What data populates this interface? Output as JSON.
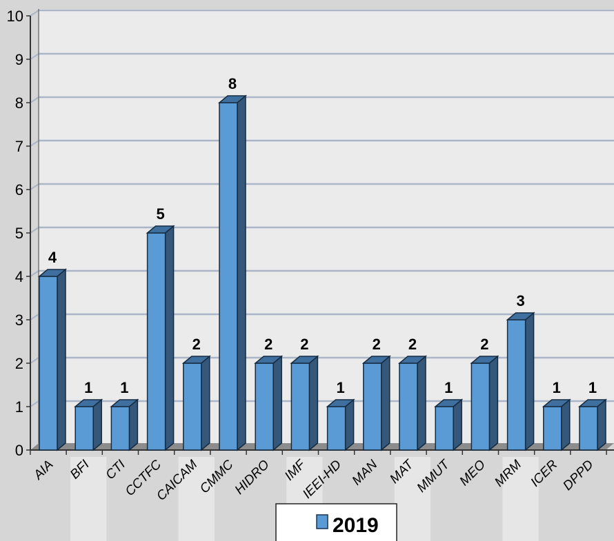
{
  "chart_data": {
    "type": "bar",
    "categories": [
      "AIA",
      "BFI",
      "CTI",
      "CCTFC",
      "CAICAM",
      "CMMC",
      "HIDRO",
      "IMF",
      "IEEI-HD",
      "MAN",
      "MAT",
      "MMUT",
      "MEO",
      "MRM",
      "ICER",
      "DPPD"
    ],
    "series": [
      {
        "name": "2019",
        "values": [
          4,
          1,
          1,
          5,
          2,
          8,
          2,
          2,
          1,
          2,
          2,
          1,
          2,
          3,
          1,
          1
        ]
      }
    ],
    "yticks": [
      "0",
      "1",
      "2",
      "3",
      "4",
      "5",
      "6",
      "7",
      "8",
      "9",
      "10"
    ],
    "ylim": [
      0,
      10
    ],
    "grid": true,
    "legend_position": "bottom-center",
    "style": "3d"
  },
  "colors": {
    "bar_front": "#5b9bd5",
    "bar_top": "#3f6f9e",
    "bar_side": "#34577a",
    "plot_background": "#ebebeb",
    "gridline": "#aab6c8",
    "page_background": "#d6d6d6"
  }
}
